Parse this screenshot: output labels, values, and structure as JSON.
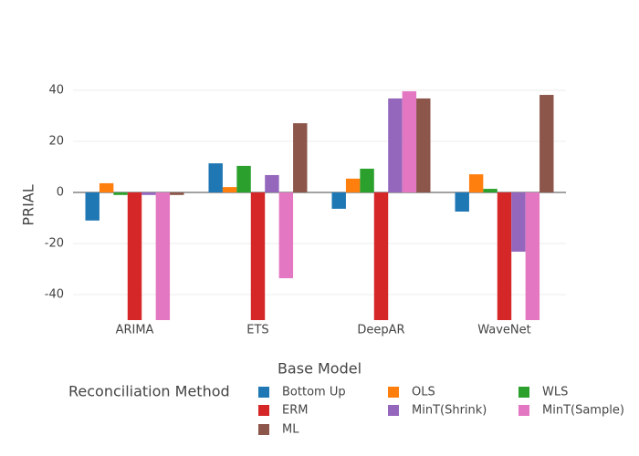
{
  "chart_data": {
    "type": "bar",
    "xlabel": "Base Model",
    "ylabel": "PRIAL",
    "legend_title": "Reconciliation Method",
    "categories": [
      "ARIMA",
      "ETS",
      "DeepAR",
      "WaveNet"
    ],
    "series": [
      {
        "name": "Bottom Up",
        "color": "#1f77b4",
        "values": [
          -11,
          11.4,
          -6.4,
          -7.5
        ]
      },
      {
        "name": "OLS",
        "color": "#ff7f0e",
        "values": [
          3.6,
          2.1,
          5.4,
          7.1
        ]
      },
      {
        "name": "WLS",
        "color": "#2ca02c",
        "values": [
          -1,
          10.4,
          9.3,
          1.4
        ]
      },
      {
        "name": "ERM",
        "color": "#d62728",
        "values": [
          -50,
          -50,
          -50,
          -50
        ]
      },
      {
        "name": "MinT(Shrink)",
        "color": "#9467bd",
        "values": [
          -1,
          6.8,
          36.8,
          -23.2
        ]
      },
      {
        "name": "MinT(Sample)",
        "color": "#e377c2",
        "values": [
          -50,
          -33.6,
          39.6,
          -50
        ]
      },
      {
        "name": "ML",
        "color": "#8c564b",
        "values": [
          -1,
          27.1,
          36.8,
          38.2
        ]
      }
    ],
    "ylim": [
      -50,
      50
    ],
    "yticks": [
      -40,
      -20,
      0,
      20,
      40
    ],
    "grid": true
  }
}
